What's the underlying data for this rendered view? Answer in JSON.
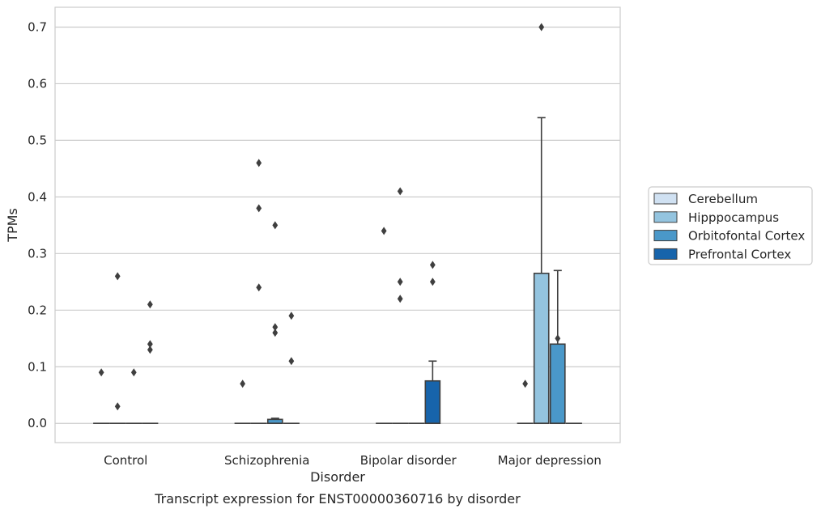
{
  "caption": "Transcript expression for ENST00000360716 by disorder",
  "chart_data": {
    "type": "box",
    "xlabel": "Disorder",
    "ylabel": "TPMs",
    "ylim": [
      -0.034,
      0.735
    ],
    "yticks": [
      0.0,
      0.1,
      0.2,
      0.3,
      0.4,
      0.5,
      0.6,
      0.7
    ],
    "ytick_labels": [
      "0.0",
      "0.1",
      "0.2",
      "0.3",
      "0.4",
      "0.5",
      "0.6",
      "0.7"
    ],
    "grid": "horizontal",
    "legend_position": "right",
    "categories": [
      "Control",
      "Schizophrenia",
      "Bipolar disorder",
      "Major depression"
    ],
    "series": [
      {
        "name": "Cerebellum",
        "color": "#d0e1f2",
        "boxes": [
          {
            "q1": 0,
            "median": 0,
            "q3": 0,
            "whislo": 0,
            "whishi": 0,
            "fliers": [
              0.09
            ]
          },
          {
            "q1": 0,
            "median": 0,
            "q3": 0,
            "whislo": 0,
            "whishi": 0,
            "fliers": [
              0.07
            ]
          },
          {
            "q1": 0,
            "median": 0,
            "q3": 0,
            "whislo": 0,
            "whishi": 0,
            "fliers": [
              0.34
            ]
          },
          {
            "q1": 0,
            "median": 0,
            "q3": 0,
            "whislo": 0,
            "whishi": 0,
            "fliers": [
              0.07
            ]
          }
        ]
      },
      {
        "name": "Hipppocampus",
        "color": "#94c4df",
        "boxes": [
          {
            "q1": 0,
            "median": 0,
            "q3": 0,
            "whislo": 0,
            "whishi": 0,
            "fliers": [
              0.26,
              0.03
            ]
          },
          {
            "q1": 0,
            "median": 0,
            "q3": 0,
            "whislo": 0,
            "whishi": 0,
            "fliers": [
              0.46,
              0.38,
              0.24
            ]
          },
          {
            "q1": 0,
            "median": 0,
            "q3": 0,
            "whislo": 0,
            "whishi": 0,
            "fliers": [
              0.41,
              0.25,
              0.22
            ]
          },
          {
            "q1": 0,
            "median": 0,
            "q3": 0.265,
            "whislo": 0,
            "whishi": 0.54,
            "fliers": [
              0.7
            ]
          }
        ]
      },
      {
        "name": "Orbitofontal Cortex",
        "color": "#4a98c9",
        "boxes": [
          {
            "q1": 0,
            "median": 0,
            "q3": 0,
            "whislo": 0,
            "whishi": 0,
            "fliers": [
              0.09
            ]
          },
          {
            "q1": 0,
            "median": 0,
            "q3": 0.007,
            "whislo": 0,
            "whishi": 0.009,
            "fliers": [
              0.35,
              0.17,
              0.16
            ]
          },
          {
            "q1": 0,
            "median": 0,
            "q3": 0,
            "whislo": 0,
            "whishi": 0,
            "fliers": []
          },
          {
            "q1": 0,
            "median": 0,
            "q3": 0.14,
            "whislo": 0,
            "whishi": 0.27,
            "fliers": [
              0.15
            ]
          }
        ]
      },
      {
        "name": "Prefrontal Cortex",
        "color": "#1764ab",
        "boxes": [
          {
            "q1": 0,
            "median": 0,
            "q3": 0,
            "whislo": 0,
            "whishi": 0,
            "fliers": [
              0.21,
              0.14,
              0.13
            ]
          },
          {
            "q1": 0,
            "median": 0,
            "q3": 0,
            "whislo": 0,
            "whishi": 0,
            "fliers": [
              0.19,
              0.11
            ]
          },
          {
            "q1": 0,
            "median": 0,
            "q3": 0.075,
            "whislo": 0,
            "whishi": 0.11,
            "fliers": [
              0.28,
              0.25
            ]
          },
          {
            "q1": 0,
            "median": 0,
            "q3": 0,
            "whislo": 0,
            "whishi": 0,
            "fliers": []
          }
        ]
      }
    ]
  }
}
